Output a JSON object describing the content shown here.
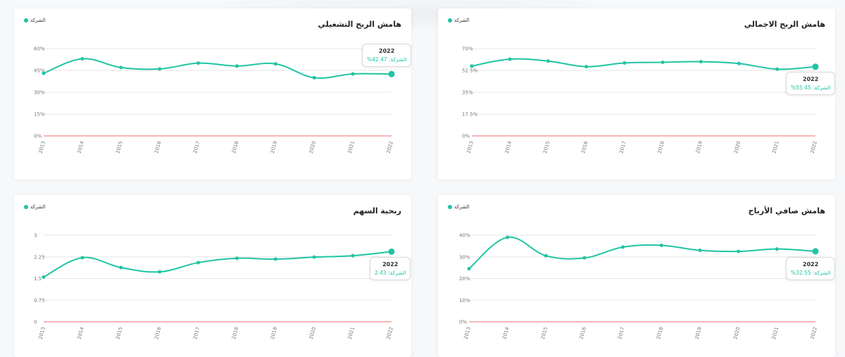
{
  "colors": {
    "series": "#20c4a4",
    "baseline": "#f28b8b",
    "grid": "#e6e6e6"
  },
  "legend_label": "الشركة",
  "charts": [
    {
      "id": "operating",
      "title": "هامش الربح التشغيلي",
      "tooltip": {
        "year": "2022",
        "label": "الشركة:",
        "value": "42.47%"
      },
      "chart_data": {
        "type": "line",
        "x": [
          "2013",
          "2014",
          "2015",
          "2016",
          "2017",
          "2018",
          "2019",
          "2020",
          "2021",
          "2022"
        ],
        "series": [
          {
            "name": "الشركة",
            "values": [
              43,
              53,
              47,
              46,
              50,
              48,
              49.5,
              40,
              42.6,
              42.47
            ]
          }
        ],
        "y_ticks": [
          "0%",
          "15%",
          "30%",
          "45%",
          "60%"
        ],
        "ylim": [
          0,
          60
        ]
      }
    },
    {
      "id": "gross",
      "title": "هامش الربح الاجمالي",
      "tooltip": {
        "year": "2022",
        "label": "الشركة:",
        "value": "55.45%"
      },
      "chart_data": {
        "type": "line",
        "x": [
          "2013",
          "2014",
          "2015",
          "2016",
          "2017",
          "2018",
          "2019",
          "2020",
          "2021",
          "2022"
        ],
        "series": [
          {
            "name": "الشركة",
            "values": [
              56,
              61.5,
              60,
              55.5,
              58.5,
              59,
              59.5,
              58,
              53.5,
              55.45
            ]
          }
        ],
        "y_ticks": [
          "0%",
          "17.5%",
          "35%",
          "52.5%",
          "70%"
        ],
        "ylim": [
          0,
          70
        ]
      }
    },
    {
      "id": "eps",
      "title": "ربحية السهم",
      "tooltip": {
        "year": "2022",
        "label": "الشركة:",
        "value": "2.43"
      },
      "chart_data": {
        "type": "line",
        "x": [
          "2013",
          "2014",
          "2015",
          "2016",
          "2017",
          "2018",
          "2019",
          "2020",
          "2021",
          "2022"
        ],
        "series": [
          {
            "name": "الشركة",
            "values": [
              1.55,
              2.22,
              1.88,
              1.73,
              2.05,
              2.2,
              2.17,
              2.24,
              2.29,
              2.43
            ]
          }
        ],
        "y_ticks": [
          "0",
          "0.75",
          "1.5",
          "2.25",
          "3"
        ],
        "ylim": [
          0,
          3
        ]
      }
    },
    {
      "id": "net",
      "title": "هامش صافي الأرباح",
      "tooltip": {
        "year": "2022",
        "label": "الشركة:",
        "value": "32.55%"
      },
      "chart_data": {
        "type": "line",
        "x": [
          "2013",
          "2014",
          "2015",
          "2016",
          "2017",
          "2018",
          "2019",
          "2020",
          "2021",
          "2022"
        ],
        "series": [
          {
            "name": "الشركة",
            "values": [
              24.5,
              39,
              30.5,
              29.5,
              34.5,
              35.3,
              33,
              32.5,
              33.6,
              32.55
            ]
          }
        ],
        "y_ticks": [
          "0%",
          "10%",
          "20%",
          "30%",
          "40%"
        ],
        "ylim": [
          0,
          40
        ]
      }
    }
  ]
}
